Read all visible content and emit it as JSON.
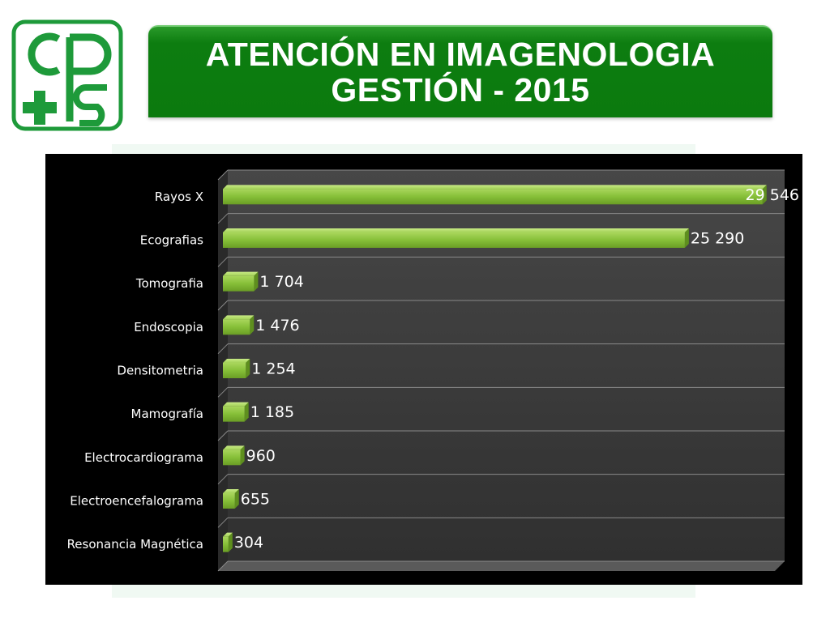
{
  "header": {
    "logo_text": "cps",
    "title_line1": "ATENCIÓN EN IMAGENOLOGIA",
    "title_line2": "GESTIÓN - 2015"
  },
  "colors": {
    "banner": "#0b7a0e",
    "bar": "#8cc63f",
    "plot_bg": "#3a3a3a",
    "logo_green": "#1e9a3a"
  },
  "chart_data": {
    "type": "bar",
    "orientation": "horizontal",
    "style": "3d",
    "categories": [
      "Rayos X",
      "Ecografias",
      "Tomografia",
      "Endoscopia",
      "Densitometria",
      "Mamografía",
      "Electrocardiograma",
      "Electroencefalograma",
      "Resonancia Magnética"
    ],
    "values": [
      29546,
      25290,
      1704,
      1476,
      1254,
      1185,
      960,
      655,
      304
    ],
    "value_labels": [
      "29 546",
      "25 290",
      "1 704",
      "1 476",
      "1 254",
      "1 185",
      "960",
      "655",
      "304"
    ],
    "xlim": [
      0,
      30000
    ],
    "grid": true,
    "legend": "none"
  }
}
